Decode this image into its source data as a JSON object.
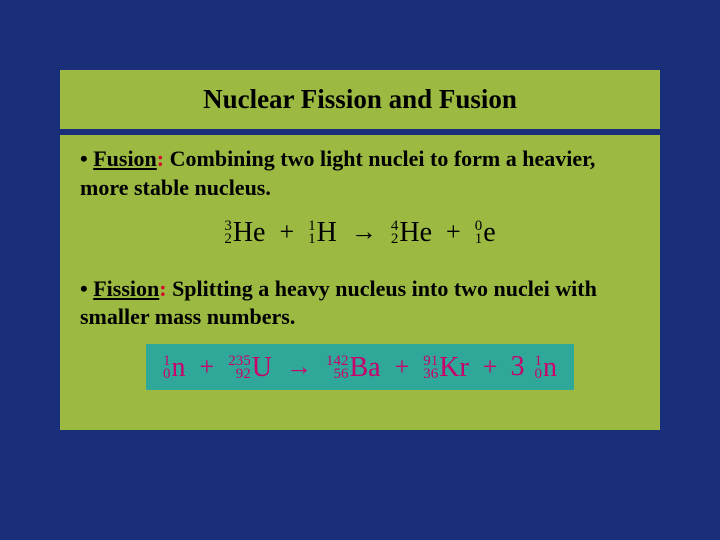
{
  "colors": {
    "slide_bg": "#1a2f7a",
    "panel_bg": "#9cb942",
    "fission_eq_bg": "#2fa89a",
    "fission_eq_color": "#c9006b",
    "title_color": "#000000",
    "body_text_color": "#000000",
    "colon_color": "#d6002a"
  },
  "title": "Nuclear Fission and Fusion",
  "bullet": "•",
  "fusion": {
    "label": "Fusion",
    "colon": ":",
    "definition": "  Combining two light nuclei to form a heavier, more stable nucleus.",
    "eq": {
      "terms": [
        {
          "mass": "3",
          "atom": "2",
          "sym": "He"
        },
        {
          "mass": "1",
          "atom": "1",
          "sym": "H"
        },
        {
          "mass": "4",
          "atom": "2",
          "sym": "He"
        },
        {
          "mass": "0",
          "atom": "1",
          "sym": "e"
        }
      ],
      "plus": "+",
      "arrow": "→"
    }
  },
  "fission": {
    "label": "Fission",
    "colon": ":",
    "definition": "  Splitting a heavy nucleus into two nuclei with smaller mass numbers.",
    "eq": {
      "terms": [
        {
          "mass": "1",
          "atom": "0",
          "sym": "n"
        },
        {
          "mass": "235",
          "atom": "92",
          "sym": "U"
        },
        {
          "mass": "142",
          "atom": "56",
          "sym": "Ba"
        },
        {
          "mass": "91",
          "atom": "36",
          "sym": "Kr"
        },
        {
          "coeff": "3",
          "mass": "1",
          "atom": "0",
          "sym": "n"
        }
      ],
      "plus": "+",
      "arrow": "→"
    }
  }
}
